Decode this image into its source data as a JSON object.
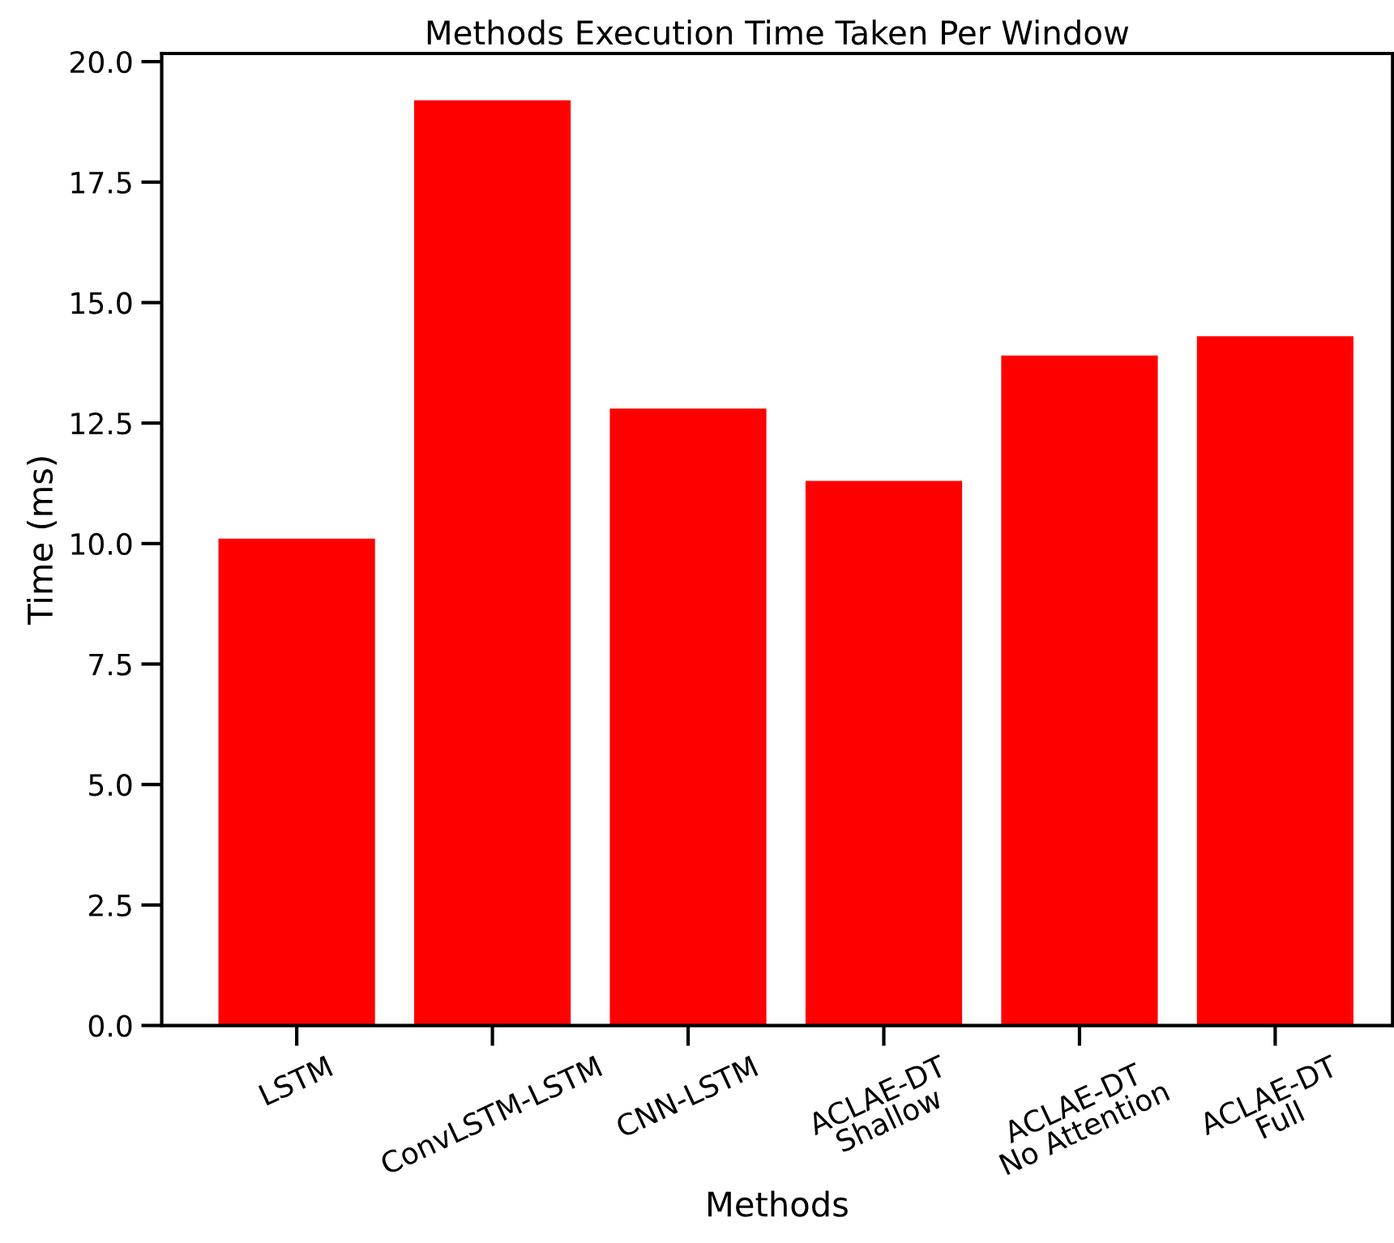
{
  "chart_data": {
    "type": "bar",
    "title": "Methods Execution Time Taken Per Window",
    "xlabel": "Methods",
    "ylabel": "Time (ms)",
    "categories": [
      "LSTM",
      "ConvLSTM-LSTM",
      "CNN-LSTM",
      "ACLAE-DT\nShallow",
      "ACLAE-DT\nNo Attention",
      "ACLAE-DT\nFull"
    ],
    "values": [
      10.1,
      19.2,
      12.8,
      11.3,
      13.9,
      14.3
    ],
    "color": "#ff0000",
    "ylim": [
      0,
      20.17
    ],
    "yticks": [
      {
        "value": 0,
        "label": "0.0"
      },
      2.5,
      {
        "value": 5,
        "label": "5.0"
      },
      7.5,
      {
        "value": 10,
        "label": "10.0"
      },
      12.5,
      {
        "value": 15,
        "label": "15.0"
      },
      17.5,
      {
        "value": 20,
        "label": "20.0"
      }
    ],
    "grid": false,
    "legend": false
  }
}
